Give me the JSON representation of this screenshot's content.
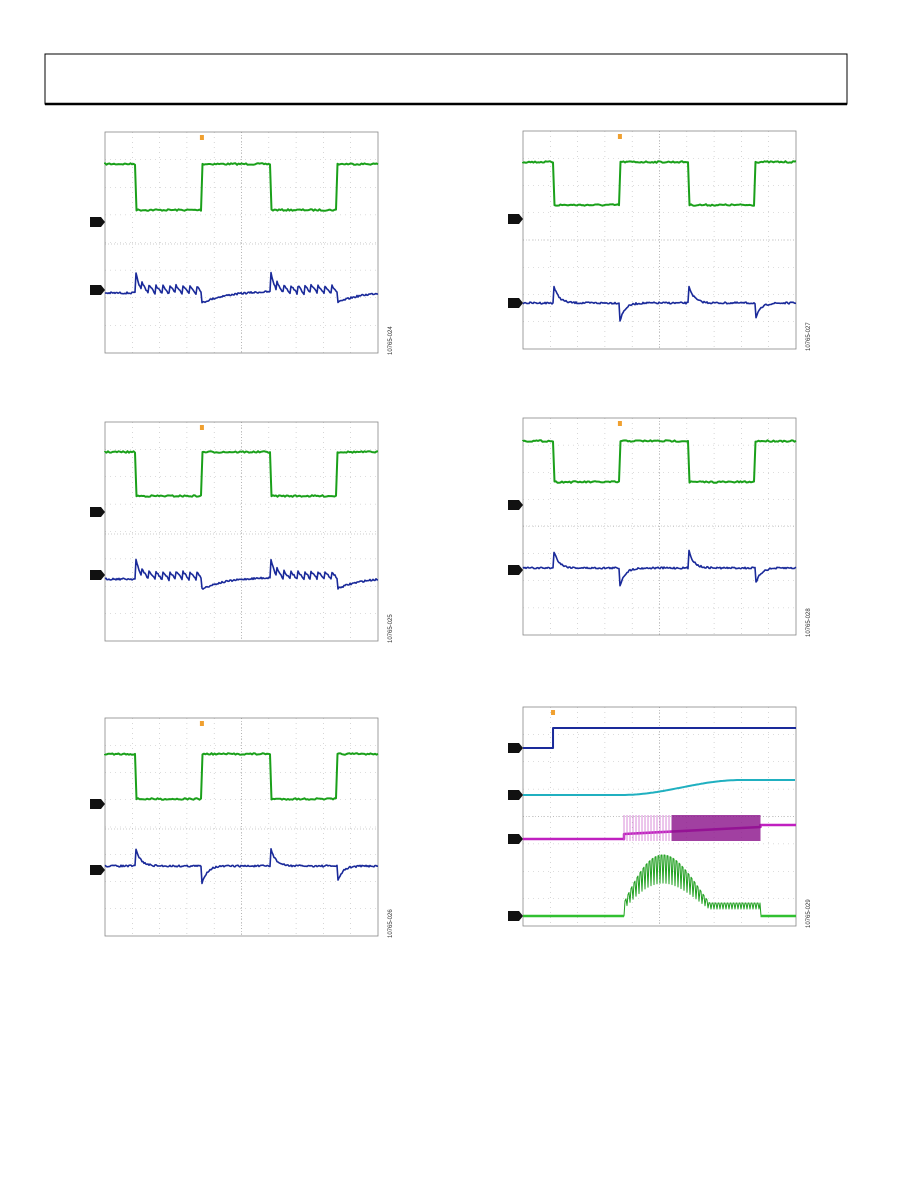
{
  "figures": [
    {
      "id": "10765-024"
    },
    {
      "id": "10765-027"
    },
    {
      "id": "10765-025"
    },
    {
      "id": "10765-028"
    },
    {
      "id": "10765-026"
    },
    {
      "id": "10765-029"
    }
  ]
}
